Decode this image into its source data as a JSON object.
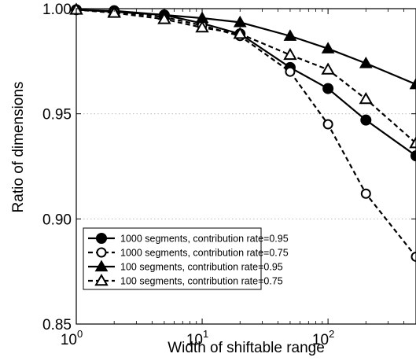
{
  "chart_data": {
    "type": "line",
    "title": "",
    "xlabel": "Width of shiftable range",
    "ylabel": "Ratio of dimensions",
    "xscale": "log",
    "xlim": [
      1,
      500
    ],
    "ylim": [
      0.85,
      1.0
    ],
    "grid": "y-dotted",
    "legend_position": "bottom-left",
    "x_ticks": [
      {
        "value": 1,
        "base": "10",
        "exp": "0"
      },
      {
        "value": 10,
        "base": "10",
        "exp": "1"
      },
      {
        "value": 100,
        "base": "10",
        "exp": "2"
      }
    ],
    "y_ticks": [
      {
        "value": 0.85,
        "label": "0.85"
      },
      {
        "value": 0.9,
        "label": "0.90"
      },
      {
        "value": 0.95,
        "label": "0.95"
      },
      {
        "value": 1.0,
        "label": "1.00"
      }
    ],
    "x": [
      1,
      2,
      5,
      10,
      20,
      50,
      100,
      200,
      500
    ],
    "series": [
      {
        "name": "1000 segments, contribution rate=0.95",
        "marker": "circle-filled",
        "line": "solid",
        "values": [
          0.9995,
          0.999,
          0.997,
          0.993,
          0.988,
          0.972,
          0.962,
          0.947,
          0.93
        ]
      },
      {
        "name": "1000 segments, contribution rate=0.75",
        "marker": "circle-open",
        "line": "dashed",
        "values": [
          0.9995,
          0.9985,
          0.996,
          0.992,
          0.987,
          0.97,
          0.945,
          0.912,
          0.882
        ]
      },
      {
        "name": "100 segments, contribution rate=0.95",
        "marker": "triangle-filled",
        "line": "solid",
        "values": [
          0.9995,
          0.9985,
          0.997,
          0.9955,
          0.9935,
          0.987,
          0.981,
          0.974,
          0.964
        ]
      },
      {
        "name": "100 segments, contribution rate=0.75",
        "marker": "triangle-open",
        "line": "dashed",
        "values": [
          0.9995,
          0.998,
          0.995,
          0.991,
          0.988,
          0.978,
          0.971,
          0.957,
          0.936
        ]
      }
    ]
  }
}
